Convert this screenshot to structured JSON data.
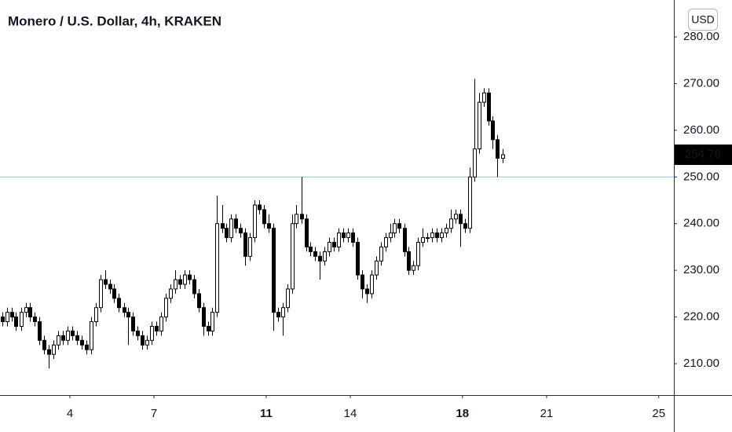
{
  "chart_data": {
    "type": "candlestick",
    "title": "Monero / U.S. Dollar, 4h, KRAKEN",
    "currency": "USD",
    "x": [
      1.58,
      1.75,
      1.92,
      2.08,
      2.25,
      2.42,
      2.58,
      2.75,
      2.92,
      3.08,
      3.25,
      3.42,
      3.58,
      3.75,
      3.92,
      4.08,
      4.25,
      4.42,
      4.58,
      4.75,
      4.92,
      5.08,
      5.25,
      5.42,
      5.58,
      5.75,
      5.92,
      6.08,
      6.25,
      6.42,
      6.58,
      6.75,
      6.92,
      7.08,
      7.25,
      7.42,
      7.58,
      7.75,
      7.92,
      8.08,
      8.25,
      8.42,
      8.58,
      8.75,
      8.92,
      9.08,
      9.25,
      9.42,
      9.58,
      9.75,
      9.92,
      10.08,
      10.25,
      10.42,
      10.58,
      10.75,
      10.92,
      11.08,
      11.25,
      11.42,
      11.58,
      11.75,
      11.92,
      12.08,
      12.25,
      12.42,
      12.58,
      12.75,
      12.92,
      13.08,
      13.25,
      13.42,
      13.58,
      13.75,
      13.92,
      14.08,
      14.25,
      14.42,
      14.58,
      14.75,
      14.92,
      15.08,
      15.25,
      15.42,
      15.58,
      15.75,
      15.92,
      16.08,
      16.25,
      16.42,
      16.58,
      16.75,
      16.92,
      17.08,
      17.25,
      17.42,
      17.58,
      17.75,
      17.92,
      18.08,
      18.25,
      18.42,
      18.58,
      18.75,
      18.92,
      19.08,
      19.25,
      19.42
    ],
    "ohlc": [
      [
        220,
        221,
        218,
        219
      ],
      [
        219,
        222,
        218,
        221
      ],
      [
        221,
        222,
        219,
        220
      ],
      [
        220,
        221,
        217,
        218
      ],
      [
        218,
        222,
        217,
        221
      ],
      [
        221,
        223,
        220,
        222
      ],
      [
        222,
        223,
        219,
        220
      ],
      [
        220,
        221,
        218,
        219
      ],
      [
        219,
        220,
        214,
        215
      ],
      [
        215,
        216,
        212,
        213
      ],
      [
        213,
        214,
        209,
        212
      ],
      [
        212,
        215,
        211,
        214
      ],
      [
        214,
        217,
        213,
        216
      ],
      [
        216,
        217,
        214,
        215
      ],
      [
        215,
        218,
        214,
        217
      ],
      [
        217,
        218,
        215,
        216
      ],
      [
        216,
        217,
        214,
        215
      ],
      [
        215,
        216,
        213,
        214
      ],
      [
        214,
        215,
        212,
        213
      ],
      [
        213,
        220,
        212,
        219
      ],
      [
        219,
        223,
        218,
        222
      ],
      [
        222,
        229,
        221,
        228
      ],
      [
        228,
        230,
        226,
        227
      ],
      [
        227,
        228,
        225,
        226
      ],
      [
        226,
        227,
        223,
        224
      ],
      [
        224,
        225,
        221,
        222
      ],
      [
        222,
        223,
        220,
        221
      ],
      [
        221,
        222,
        214,
        220
      ],
      [
        220,
        221,
        216,
        217
      ],
      [
        217,
        218,
        215,
        216
      ],
      [
        216,
        217,
        213,
        214
      ],
      [
        214,
        216,
        213,
        215
      ],
      [
        215,
        219,
        214,
        218
      ],
      [
        218,
        219,
        216,
        217
      ],
      [
        217,
        221,
        216,
        220
      ],
      [
        220,
        225,
        219,
        224
      ],
      [
        224,
        227,
        223,
        226
      ],
      [
        226,
        230,
        225,
        228
      ],
      [
        228,
        229,
        226,
        227
      ],
      [
        227,
        230,
        226,
        229
      ],
      [
        229,
        230,
        227,
        228
      ],
      [
        228,
        229,
        224,
        225
      ],
      [
        225,
        226,
        221,
        222
      ],
      [
        222,
        223,
        216,
        218
      ],
      [
        218,
        219,
        216,
        217
      ],
      [
        217,
        222,
        216,
        221
      ],
      [
        221,
        246,
        220,
        240
      ],
      [
        240,
        244,
        238,
        239
      ],
      [
        239,
        240,
        236,
        237
      ],
      [
        237,
        242,
        236,
        241
      ],
      [
        241,
        242,
        238,
        239
      ],
      [
        239,
        240,
        237,
        238
      ],
      [
        238,
        239,
        231,
        233
      ],
      [
        233,
        238,
        232,
        237
      ],
      [
        237,
        245,
        236,
        244
      ],
      [
        244,
        245,
        242,
        243
      ],
      [
        243,
        244,
        239,
        240
      ],
      [
        240,
        242,
        238,
        239
      ],
      [
        239,
        240,
        217,
        221
      ],
      [
        221,
        222,
        219,
        220
      ],
      [
        220,
        223,
        216,
        222
      ],
      [
        222,
        227,
        221,
        226
      ],
      [
        226,
        242,
        225,
        240
      ],
      [
        240,
        244,
        239,
        242
      ],
      [
        242,
        250,
        240,
        241
      ],
      [
        241,
        242,
        234,
        235
      ],
      [
        235,
        236,
        233,
        234
      ],
      [
        234,
        235,
        232,
        233
      ],
      [
        233,
        234,
        228,
        232
      ],
      [
        232,
        235,
        231,
        234
      ],
      [
        234,
        237,
        233,
        236
      ],
      [
        236,
        237,
        234,
        235
      ],
      [
        235,
        239,
        234,
        238
      ],
      [
        238,
        239,
        236,
        237
      ],
      [
        237,
        239,
        236,
        238
      ],
      [
        238,
        239,
        235,
        236
      ],
      [
        236,
        237,
        228,
        229
      ],
      [
        229,
        230,
        224,
        226
      ],
      [
        226,
        227,
        223,
        225
      ],
      [
        225,
        230,
        224,
        229
      ],
      [
        229,
        233,
        228,
        232
      ],
      [
        232,
        236,
        231,
        235
      ],
      [
        235,
        238,
        234,
        237
      ],
      [
        237,
        240,
        236,
        238
      ],
      [
        238,
        241,
        237,
        240
      ],
      [
        240,
        241,
        238,
        239
      ],
      [
        239,
        240,
        233,
        234
      ],
      [
        234,
        235,
        229,
        230
      ],
      [
        230,
        232,
        229,
        231
      ],
      [
        231,
        237,
        230,
        236
      ],
      [
        236,
        239,
        235,
        237
      ],
      [
        237,
        238,
        236,
        237
      ],
      [
        237,
        239,
        236,
        238
      ],
      [
        238,
        239,
        236,
        237
      ],
      [
        237,
        239,
        236,
        238
      ],
      [
        238,
        240,
        237,
        239
      ],
      [
        239,
        243,
        238,
        241
      ],
      [
        241,
        243,
        240,
        242
      ],
      [
        242,
        243,
        235,
        240
      ],
      [
        240,
        241,
        238,
        239
      ],
      [
        239,
        252,
        238,
        250
      ],
      [
        250,
        271,
        249,
        256
      ],
      [
        256,
        268,
        255,
        266
      ],
      [
        266,
        269,
        265,
        268
      ],
      [
        268,
        269,
        261,
        262
      ],
      [
        262,
        263,
        256,
        258
      ],
      [
        258,
        259,
        250,
        254
      ],
      [
        254,
        256,
        253,
        254.76
      ]
    ],
    "up_color": "#ffffff",
    "down_color": "#000000",
    "outline_color": "#000000",
    "hline": {
      "value": 250,
      "color": "#90bff9"
    },
    "xlim": [
      1.507,
      25.54
    ],
    "xticks": [
      4,
      7,
      11,
      14,
      18,
      21,
      25
    ],
    "ylim": [
      203.27,
      287.91
    ],
    "yticks": [
      {
        "value": 210,
        "label": "210.00"
      },
      {
        "value": 220,
        "label": "220.00"
      },
      {
        "value": 230,
        "label": "230.00"
      },
      {
        "value": 240,
        "label": "240.00"
      },
      {
        "value": 250,
        "label": "250.00"
      },
      {
        "value": 260,
        "label": "260.00"
      },
      {
        "value": 270,
        "label": "270.00"
      },
      {
        "value": 280,
        "label": "280.00"
      }
    ],
    "grid": false
  }
}
